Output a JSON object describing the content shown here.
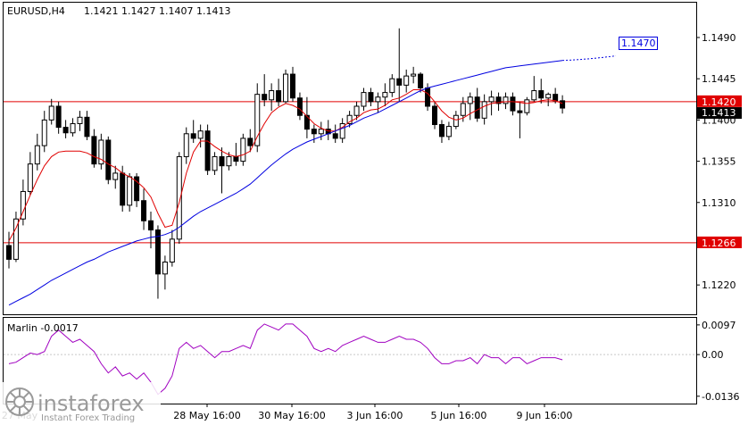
{
  "header": {
    "symbol": "EURUSD,H4",
    "ohlc": "1.1421 1.1427 1.1407 1.1413"
  },
  "watermark": {
    "brand": "instaforex",
    "tagline": "Instant Forex Trading"
  },
  "colors": {
    "bull_body": "#ffffff",
    "bear_body": "#000000",
    "candle_outline": "#000000",
    "ma_fast": "#e00000",
    "ma_slow": "#0000e0",
    "level_line": "#e00000",
    "oscillator": "#a000c0",
    "grid_frame": "#000000",
    "target_label": "#0000e0"
  },
  "chart_data": [
    {
      "type": "candlestick",
      "title": "EURUSD,H4",
      "ylim": [
        1.1188,
        1.1528
      ],
      "y_ticks": [
        1.149,
        1.1445,
        1.14,
        1.1355,
        1.131,
        1.122
      ],
      "y_tick_labels": [
        "1.1490",
        "1.1445",
        "1.1400",
        "1.1355",
        "1.1310",
        "1.1220"
      ],
      "x_tick_labels": [
        "27 May",
        "28 May 16:00",
        "30 May 16:00",
        "3 Jun 16:00",
        "5 Jun 16:00",
        "9 Jun 16:00"
      ],
      "levels": [
        {
          "value": 1.142,
          "label": "1.1420"
        },
        {
          "value": 1.1266,
          "label": "1.1266"
        }
      ],
      "price_marker": {
        "value": 1.1413,
        "label": "1.1413"
      },
      "target": {
        "value": 1.147,
        "label": "1.1470"
      },
      "candles": [
        [
          1.1263,
          1.1278,
          1.1238,
          1.1248
        ],
        [
          1.1248,
          1.13,
          1.1245,
          1.1292
        ],
        [
          1.1292,
          1.1335,
          1.1285,
          1.1322
        ],
        [
          1.1322,
          1.1365,
          1.1318,
          1.1352
        ],
        [
          1.1352,
          1.1385,
          1.1345,
          1.1372
        ],
        [
          1.1372,
          1.141,
          1.1365,
          1.14
        ],
        [
          1.14,
          1.1423,
          1.1395,
          1.1415
        ],
        [
          1.1415,
          1.142,
          1.1385,
          1.1392
        ],
        [
          1.1392,
          1.14,
          1.138,
          1.1386
        ],
        [
          1.1386,
          1.1402,
          1.1382,
          1.1396
        ],
        [
          1.1396,
          1.141,
          1.1388,
          1.1403
        ],
        [
          1.1403,
          1.141,
          1.1378,
          1.1382
        ],
        [
          1.1382,
          1.139,
          1.1348,
          1.1352
        ],
        [
          1.1352,
          1.1385,
          1.1346,
          1.1378
        ],
        [
          1.1378,
          1.1382,
          1.133,
          1.1335
        ],
        [
          1.1335,
          1.135,
          1.1325,
          1.1342
        ],
        [
          1.1342,
          1.135,
          1.13,
          1.1307
        ],
        [
          1.1307,
          1.1342,
          1.13,
          1.1338
        ],
        [
          1.1338,
          1.1342,
          1.1305,
          1.1312
        ],
        [
          1.1312,
          1.1325,
          1.128,
          1.129
        ],
        [
          1.129,
          1.13,
          1.126,
          1.128
        ],
        [
          1.128,
          1.1285,
          1.1205,
          1.1232
        ],
        [
          1.1232,
          1.1252,
          1.1215,
          1.1245
        ],
        [
          1.1245,
          1.128,
          1.124,
          1.127
        ],
        [
          1.127,
          1.1365,
          1.1265,
          1.136
        ],
        [
          1.136,
          1.1392,
          1.1352,
          1.1385
        ],
        [
          1.1385,
          1.14,
          1.1375,
          1.138
        ],
        [
          1.138,
          1.1395,
          1.137,
          1.1388
        ],
        [
          1.1388,
          1.1395,
          1.134,
          1.1345
        ],
        [
          1.1345,
          1.1365,
          1.134,
          1.136
        ],
        [
          1.136,
          1.137,
          1.132,
          1.135
        ],
        [
          1.135,
          1.1365,
          1.1345,
          1.136
        ],
        [
          1.136,
          1.1375,
          1.135,
          1.1355
        ],
        [
          1.1355,
          1.1385,
          1.135,
          1.138
        ],
        [
          1.138,
          1.139,
          1.1365,
          1.1372
        ],
        [
          1.1372,
          1.144,
          1.1365,
          1.1428
        ],
        [
          1.1428,
          1.145,
          1.1415,
          1.1422
        ],
        [
          1.1422,
          1.144,
          1.141,
          1.1432
        ],
        [
          1.1432,
          1.1445,
          1.1415,
          1.142
        ],
        [
          1.142,
          1.1455,
          1.1418,
          1.145
        ],
        [
          1.145,
          1.1458,
          1.142,
          1.1424
        ],
        [
          1.1424,
          1.143,
          1.14,
          1.1405
        ],
        [
          1.1405,
          1.1425,
          1.138,
          1.139
        ],
        [
          1.139,
          1.1395,
          1.1375,
          1.1385
        ],
        [
          1.1385,
          1.1398,
          1.1378,
          1.139
        ],
        [
          1.139,
          1.14,
          1.1378,
          1.1385
        ],
        [
          1.1385,
          1.1395,
          1.1375,
          1.138
        ],
        [
          1.138,
          1.1402,
          1.1375,
          1.1396
        ],
        [
          1.1396,
          1.141,
          1.1392,
          1.1405
        ],
        [
          1.1405,
          1.142,
          1.14,
          1.1415
        ],
        [
          1.1415,
          1.1435,
          1.141,
          1.143
        ],
        [
          1.143,
          1.1435,
          1.1415,
          1.142
        ],
        [
          1.142,
          1.143,
          1.1408,
          1.1425
        ],
        [
          1.1425,
          1.144,
          1.1415,
          1.143
        ],
        [
          1.143,
          1.145,
          1.1425,
          1.1445
        ],
        [
          1.1445,
          1.15,
          1.142,
          1.1438
        ],
        [
          1.1438,
          1.1455,
          1.143,
          1.1448
        ],
        [
          1.1448,
          1.1458,
          1.144,
          1.145
        ],
        [
          1.145,
          1.1452,
          1.143,
          1.1435
        ],
        [
          1.1435,
          1.144,
          1.141,
          1.1415
        ],
        [
          1.1415,
          1.142,
          1.139,
          1.1395
        ],
        [
          1.1395,
          1.14,
          1.1375,
          1.1382
        ],
        [
          1.1382,
          1.1398,
          1.1378,
          1.1393
        ],
        [
          1.1393,
          1.141,
          1.139,
          1.1405
        ],
        [
          1.1405,
          1.1425,
          1.1398,
          1.1418
        ],
        [
          1.1418,
          1.143,
          1.14,
          1.1425
        ],
        [
          1.1425,
          1.1435,
          1.1398,
          1.1402
        ],
        [
          1.1402,
          1.1428,
          1.1395,
          1.142
        ],
        [
          1.142,
          1.1432,
          1.1405,
          1.1425
        ],
        [
          1.1425,
          1.143,
          1.141,
          1.1418
        ],
        [
          1.1418,
          1.143,
          1.1412,
          1.1425
        ],
        [
          1.1425,
          1.143,
          1.1405,
          1.141
        ],
        [
          1.141,
          1.142,
          1.138,
          1.1408
        ],
        [
          1.1408,
          1.1425,
          1.1405,
          1.1422
        ],
        [
          1.1422,
          1.1448,
          1.142,
          1.1432
        ],
        [
          1.1432,
          1.1445,
          1.1418,
          1.1424
        ],
        [
          1.1424,
          1.143,
          1.1415,
          1.1428
        ],
        [
          1.1428,
          1.1435,
          1.1418,
          1.1421
        ],
        [
          1.1421,
          1.1427,
          1.1407,
          1.1413
        ]
      ],
      "series": [
        {
          "name": "",
          "type": "line",
          "values": [
            1.1268,
            1.1282,
            1.13,
            1.1318,
            1.1335,
            1.135,
            1.136,
            1.1365,
            1.1366,
            1.1366,
            1.1366,
            1.1364,
            1.136,
            1.1357,
            1.1352,
            1.1348,
            1.1342,
            1.1338,
            1.1333,
            1.1326,
            1.1316,
            1.1298,
            1.1283,
            1.1285,
            1.131,
            1.1342,
            1.1365,
            1.1377,
            1.1377,
            1.1371,
            1.1366,
            1.1362,
            1.136,
            1.1362,
            1.1366,
            1.1382,
            1.1396,
            1.1408,
            1.1414,
            1.1418,
            1.1416,
            1.1412,
            1.1404,
            1.1396,
            1.1391,
            1.1388,
            1.1388,
            1.1392,
            1.1398,
            1.1402,
            1.1408,
            1.1411,
            1.1412,
            1.1416,
            1.1422,
            1.1424,
            1.1428,
            1.1433,
            1.1433,
            1.1429,
            1.142,
            1.141,
            1.1403,
            1.14,
            1.1402,
            1.1407,
            1.1411,
            1.1415,
            1.1418,
            1.1419,
            1.142,
            1.142,
            1.1419,
            1.1418,
            1.1419,
            1.1421,
            1.1422,
            1.1421,
            1.1418
          ]
        },
        {
          "name": "",
          "type": "line",
          "values": [
            1.1198,
            1.1202,
            1.1206,
            1.121,
            1.1215,
            1.122,
            1.1225,
            1.1229,
            1.1233,
            1.1237,
            1.1241,
            1.1245,
            1.1248,
            1.1252,
            1.1256,
            1.1259,
            1.1262,
            1.1265,
            1.1268,
            1.127,
            1.1272,
            1.1273,
            1.1275,
            1.1278,
            1.1283,
            1.1289,
            1.1295,
            1.13,
            1.1304,
            1.1308,
            1.1312,
            1.1316,
            1.132,
            1.1325,
            1.133,
            1.1337,
            1.1344,
            1.1351,
            1.1357,
            1.1363,
            1.1368,
            1.1372,
            1.1376,
            1.1379,
            1.1382,
            1.1385,
            1.1388,
            1.1391,
            1.1394,
            1.1398,
            1.1402,
            1.1405,
            1.1408,
            1.1412,
            1.1416,
            1.142,
            1.1424,
            1.1428,
            1.1432,
            1.1435,
            1.1437,
            1.1439,
            1.1441,
            1.1443,
            1.1445,
            1.1447,
            1.1449,
            1.1451,
            1.1453,
            1.1455,
            1.1457,
            1.1458,
            1.1459,
            1.146,
            1.1461,
            1.1462,
            1.1463,
            1.1464,
            1.1465
          ]
        }
      ]
    },
    {
      "type": "line",
      "title": "Marlin -0.0017",
      "ylim": [
        -0.016,
        0.012
      ],
      "y_ticks": [
        0.0097,
        0.0,
        -0.0136
      ],
      "y_tick_labels": [
        "0.0097",
        "0.00",
        "-0.0136"
      ],
      "series": [
        {
          "name": "Marlin",
          "values": [
            -0.003,
            -0.0025,
            -0.001,
            0.0005,
            0.0,
            0.001,
            0.006,
            0.008,
            0.006,
            0.004,
            0.005,
            0.003,
            0.001,
            -0.003,
            -0.006,
            -0.004,
            -0.007,
            -0.006,
            -0.008,
            -0.006,
            -0.009,
            -0.013,
            -0.011,
            -0.007,
            0.002,
            0.004,
            0.002,
            0.003,
            0.001,
            -0.001,
            0.001,
            0.001,
            0.002,
            0.003,
            0.002,
            0.008,
            0.01,
            0.009,
            0.008,
            0.01,
            0.01,
            0.008,
            0.006,
            0.002,
            0.001,
            0.002,
            0.001,
            0.003,
            0.004,
            0.005,
            0.006,
            0.005,
            0.004,
            0.004,
            0.005,
            0.006,
            0.005,
            0.005,
            0.004,
            0.002,
            -0.001,
            -0.003,
            -0.003,
            -0.002,
            -0.002,
            -0.001,
            -0.003,
            0.0,
            -0.001,
            -0.001,
            -0.003,
            -0.001,
            -0.001,
            -0.003,
            -0.002,
            -0.001,
            -0.001,
            -0.001,
            -0.0017
          ]
        }
      ]
    }
  ]
}
